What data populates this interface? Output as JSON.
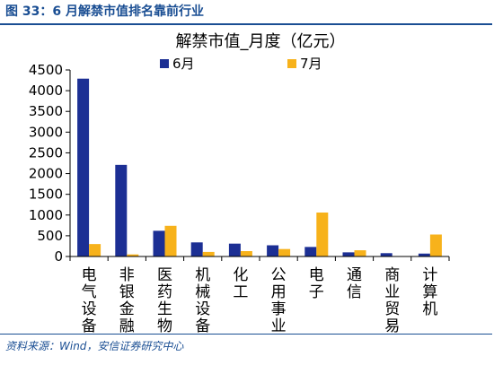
{
  "figure": {
    "caption": "图 33：6 月解禁市值排名靠前行业",
    "source": "资料来源：Wind，安信证券研究中心"
  },
  "colors": {
    "series_6": "#1c2f94",
    "series_7": "#f7b21b",
    "accent": "#1a4e93"
  },
  "chart_data": {
    "type": "bar",
    "title": "解禁市值_月度（亿元）",
    "categories": [
      "电气设备",
      "非银金融",
      "医药生物",
      "机械设备",
      "化工",
      "公用事业",
      "电子",
      "通信",
      "商业贸易",
      "计算机"
    ],
    "series": [
      {
        "name": "6月",
        "values": [
          4290,
          2210,
          620,
          340,
          310,
          270,
          230,
          100,
          80,
          70
        ]
      },
      {
        "name": "7月",
        "values": [
          300,
          50,
          740,
          110,
          130,
          180,
          1060,
          150,
          10,
          530
        ]
      }
    ],
    "ylim": [
      0,
      4500
    ],
    "yticks": [
      0,
      500,
      1000,
      1500,
      2000,
      2500,
      3000,
      3500,
      4000,
      4500
    ],
    "legend_position": "top",
    "grid": false
  }
}
